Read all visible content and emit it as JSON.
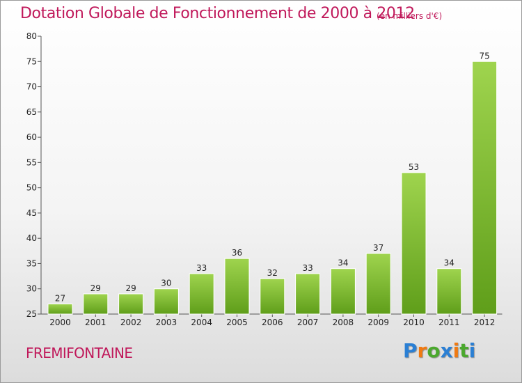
{
  "header": {
    "title": "Dotation Globale de Fonctionnement de 2000 à 2012",
    "subtitle": "(en milliers d'€)"
  },
  "footer": {
    "commune": "FREMIFONTAINE",
    "logo": {
      "letters": [
        "P",
        "r",
        "o",
        "x",
        "i",
        "t",
        "i"
      ],
      "colors": [
        "#2a7fd4",
        "#f07a12",
        "#4ba82e",
        "#2a7fd4",
        "#f07a12",
        "#4ba82e",
        "#2a7fd4"
      ]
    }
  },
  "chart_data": {
    "type": "bar",
    "title": "Dotation Globale de Fonctionnement de 2000 à 2012",
    "categories": [
      "2000",
      "2001",
      "2002",
      "2003",
      "2004",
      "2005",
      "2006",
      "2007",
      "2008",
      "2009",
      "2010",
      "2011",
      "2012"
    ],
    "values": [
      27,
      29,
      29,
      30,
      33,
      36,
      32,
      33,
      34,
      37,
      53,
      34,
      75
    ],
    "ylim": [
      25,
      80
    ],
    "yticks": [
      25,
      30,
      35,
      40,
      45,
      50,
      55,
      60,
      65,
      70,
      75,
      80
    ],
    "grid": false,
    "bar_color_top": "#9fd44e",
    "bar_color_bottom": "#5f9e1a"
  }
}
